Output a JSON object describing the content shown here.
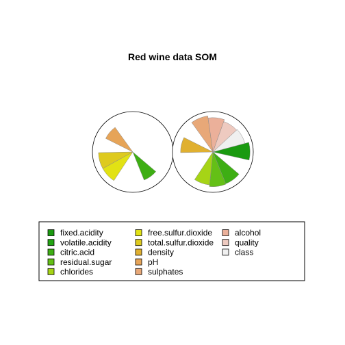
{
  "chart_data": {
    "type": "pie",
    "subtype": "som-codes-segment",
    "title": "Red wine data SOM",
    "variables": [
      {
        "name": "fixed.acidity",
        "color": "#1a9a10"
      },
      {
        "name": "volatile.acidity",
        "color": "#22a412"
      },
      {
        "name": "citric.acid",
        "color": "#3eae14"
      },
      {
        "name": "residual.sugar",
        "color": "#64c016"
      },
      {
        "name": "chlorides",
        "color": "#a6d416"
      },
      {
        "name": "free.sulfur.dioxide",
        "color": "#e2e214"
      },
      {
        "name": "total.sulfur.dioxide",
        "color": "#deca1e"
      },
      {
        "name": "density",
        "color": "#e0b030"
      },
      {
        "name": "pH",
        "color": "#e6a458"
      },
      {
        "name": "sulphates",
        "color": "#e8a878"
      },
      {
        "name": "alcohol",
        "color": "#ebb09a"
      },
      {
        "name": "quality",
        "color": "#eecac0"
      },
      {
        "name": "class",
        "color": "#f0f0f0"
      }
    ],
    "units": [
      {
        "segments": {
          "fixed.acidity": 0,
          "volatile.acidity": 0,
          "citric.acid": 0.75,
          "residual.sugar": 0,
          "chlorides": 0,
          "free.sulfur.dioxide": 0.85,
          "total.sulfur.dioxide": 0.85,
          "density": 0,
          "pH": 0.75,
          "sulphates": 0,
          "alcohol": 0,
          "quality": 0,
          "class": 0
        }
      },
      {
        "segments": {
          "fixed.acidity": 0.92,
          "volatile.acidity": 0,
          "citric.acid": 0.85,
          "residual.sugar": 0.86,
          "chlorides": 0.82,
          "free.sulfur.dioxide": 0,
          "total.sulfur.dioxide": 0,
          "density": 0.8,
          "pH": 0,
          "sulphates": 0.9,
          "alcohol": 0.85,
          "quality": 0.8,
          "class": 0.82
        }
      }
    ],
    "legend": {
      "placement": "bottom",
      "columns": 3
    }
  }
}
